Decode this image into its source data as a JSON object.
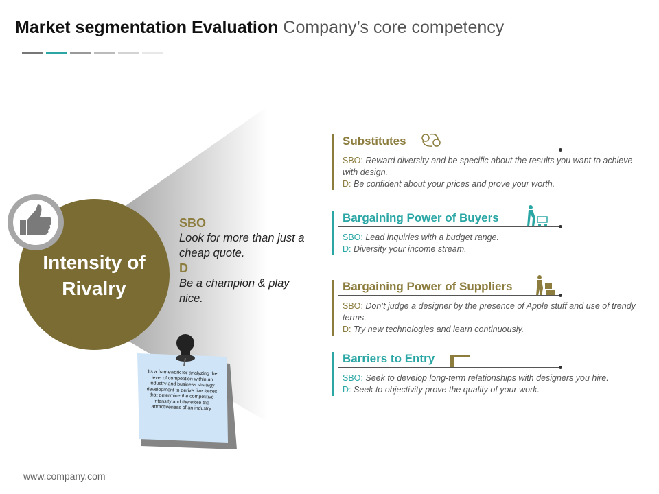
{
  "header": {
    "title_bold": "Market segmentation Evaluation",
    "title_light": "Company’s core competency"
  },
  "circle": {
    "title": "Intensity of Rivalry"
  },
  "center": {
    "sbo_label": "SBO",
    "sbo_text": "Look for  more than just  a cheap quote.",
    "d_label": "D",
    "d_text": "Be a champion & play nice."
  },
  "note": {
    "text": "Its a framework for analyzing the level of competition within an industry and business strategy development to derive five forces that determine the competitive intensity and therefore the attractiveness of an industry"
  },
  "items": [
    {
      "heading": "Substitutes",
      "color": "#8c7d3e",
      "sbo_label": "SBO:",
      "sbo_text": "Reward diversity and be specific about the results you want to achieve with design.",
      "d_label": "D:",
      "d_text": "Be confident about your prices and prove your worth."
    },
    {
      "heading": "Bargaining Power of Buyers",
      "color": "#2aa7a5",
      "sbo_label": "SBO:",
      "sbo_text": "Lead inquiries with a budget range.",
      "d_label": "D:",
      "d_text": "Diversity your income stream."
    },
    {
      "heading": "Bargaining Power of Suppliers",
      "color": "#8c7d3e",
      "sbo_label": "SBO:",
      "sbo_text": "Don’t judge a designer by the presence of Apple stuff and use of trendy terms.",
      "d_label": "D:",
      "d_text": "Try new technologies and learn continuously."
    },
    {
      "heading": "Barriers to Entry",
      "color": "#2aa7a5",
      "sbo_label": "SBO:",
      "sbo_text": "Seek to develop long-term relationships with designers you hire.",
      "d_label": "D:",
      "d_text": "Seek to objectivity prove the quality of your work."
    }
  ],
  "footer": {
    "url": "www.company.com"
  }
}
